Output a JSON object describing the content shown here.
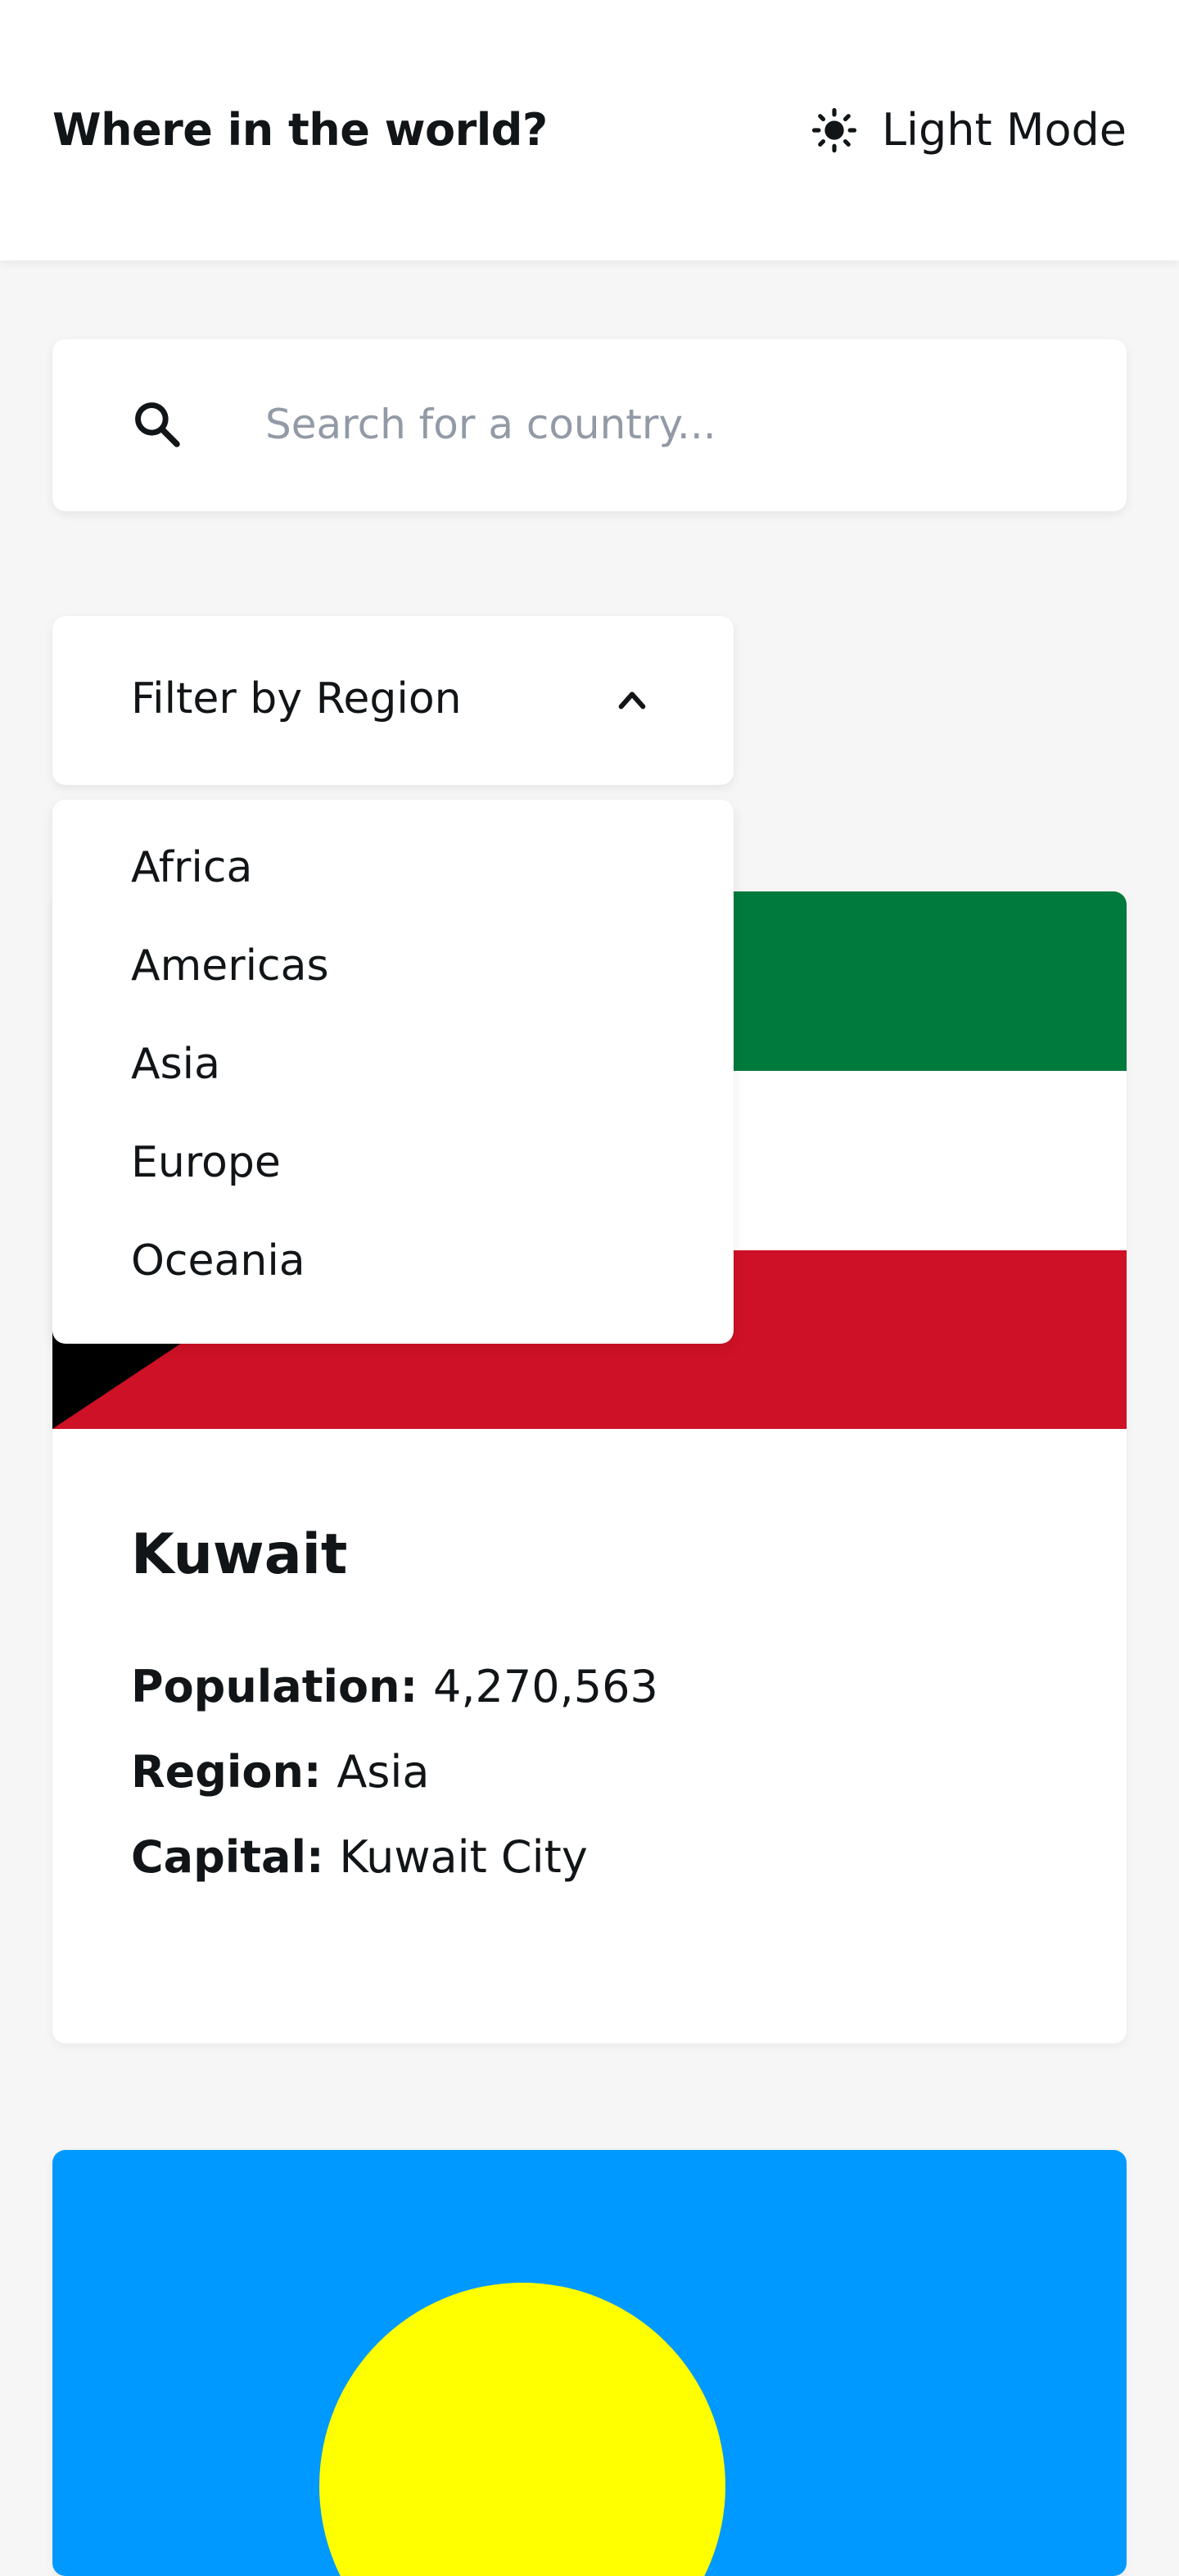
{
  "header": {
    "title": "Where in the world?",
    "mode_label": "Light Mode",
    "mode_icon": "sun-icon"
  },
  "search": {
    "placeholder": "Search for a country...",
    "value": "",
    "icon": "search-icon"
  },
  "filter": {
    "label": "Filter by Region",
    "icon": "chevron-up-icon",
    "expanded": true,
    "options": [
      "Africa",
      "Americas",
      "Asia",
      "Europe",
      "Oceania"
    ]
  },
  "cards": [
    {
      "name": "Kuwait",
      "flag_colors": {
        "top": "#007a3d",
        "middle": "#ffffff",
        "bottom": "#ce1126",
        "hoist": "#000000"
      },
      "fields": [
        {
          "label": "Population:",
          "value": "4,270,563"
        },
        {
          "label": "Region:",
          "value": "Asia"
        },
        {
          "label": "Capital:",
          "value": "Kuwait City"
        }
      ]
    },
    {
      "flag_colors": {
        "field": "#0099ff",
        "disc": "#ffff00"
      }
    }
  ],
  "colors": {
    "background": "#f6f6f6",
    "surface": "#ffffff",
    "text": "#111517",
    "placeholder": "#929aa6"
  }
}
